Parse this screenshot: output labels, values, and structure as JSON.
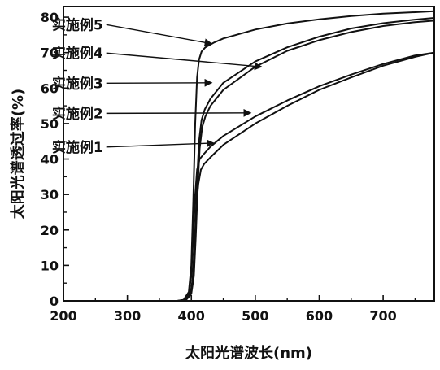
{
  "chart_data": {
    "type": "line",
    "xlabel": "太阳光谱波长(nm)",
    "ylabel": "太阳光谱透过率(%)",
    "xlim": [
      200,
      780
    ],
    "ylim": [
      0,
      83
    ],
    "x_ticks": [
      200,
      300,
      400,
      500,
      600,
      700
    ],
    "y_ticks": [
      0,
      10,
      20,
      30,
      40,
      50,
      60,
      70,
      80
    ],
    "grid": false,
    "series": [
      {
        "name": "实施例1",
        "points": [
          [
            200,
            0
          ],
          [
            380,
            0
          ],
          [
            390,
            0.3
          ],
          [
            398,
            1.5
          ],
          [
            402,
            6
          ],
          [
            405,
            16
          ],
          [
            408,
            27
          ],
          [
            411,
            33
          ],
          [
            415,
            37
          ],
          [
            420,
            38.6
          ],
          [
            430,
            40.5
          ],
          [
            450,
            44
          ],
          [
            500,
            50
          ],
          [
            550,
            55
          ],
          [
            600,
            59.5
          ],
          [
            650,
            63
          ],
          [
            700,
            66.3
          ],
          [
            750,
            68.8
          ],
          [
            780,
            70
          ]
        ]
      },
      {
        "name": "实施例2",
        "points": [
          [
            200,
            0
          ],
          [
            378,
            0
          ],
          [
            388,
            0.3
          ],
          [
            396,
            2
          ],
          [
            400,
            7
          ],
          [
            403,
            18
          ],
          [
            406,
            30
          ],
          [
            409,
            37
          ],
          [
            413,
            40
          ],
          [
            420,
            41.5
          ],
          [
            430,
            43.5
          ],
          [
            450,
            46.5
          ],
          [
            500,
            52
          ],
          [
            550,
            56.5
          ],
          [
            600,
            60.5
          ],
          [
            650,
            63.8
          ],
          [
            700,
            66.8
          ],
          [
            750,
            69.2
          ],
          [
            780,
            70
          ]
        ]
      },
      {
        "name": "实施例3",
        "points": [
          [
            200,
            0
          ],
          [
            382,
            0
          ],
          [
            392,
            0.3
          ],
          [
            400,
            2
          ],
          [
            404,
            7
          ],
          [
            407,
            18
          ],
          [
            410,
            32
          ],
          [
            413,
            43
          ],
          [
            417,
            49
          ],
          [
            422,
            52
          ],
          [
            430,
            55
          ],
          [
            450,
            59.5
          ],
          [
            500,
            66
          ],
          [
            550,
            70.5
          ],
          [
            600,
            73.5
          ],
          [
            650,
            75.8
          ],
          [
            700,
            77.5
          ],
          [
            750,
            78.6
          ],
          [
            780,
            79
          ]
        ]
      },
      {
        "name": "实施例4",
        "points": [
          [
            200,
            0
          ],
          [
            381,
            0
          ],
          [
            391,
            0.3
          ],
          [
            399,
            2
          ],
          [
            403,
            7
          ],
          [
            406,
            19
          ],
          [
            409,
            34
          ],
          [
            412,
            45
          ],
          [
            416,
            51
          ],
          [
            421,
            54
          ],
          [
            430,
            57
          ],
          [
            450,
            61.5
          ],
          [
            500,
            67.5
          ],
          [
            550,
            71.5
          ],
          [
            600,
            74.5
          ],
          [
            650,
            76.8
          ],
          [
            700,
            78.3
          ],
          [
            750,
            79.3
          ],
          [
            780,
            79.8
          ]
        ]
      },
      {
        "name": "实施例5",
        "points": [
          [
            200,
            0
          ],
          [
            378,
            0
          ],
          [
            388,
            0.3
          ],
          [
            396,
            2.5
          ],
          [
            400,
            10
          ],
          [
            403,
            28
          ],
          [
            406,
            50
          ],
          [
            409,
            63
          ],
          [
            412,
            68
          ],
          [
            416,
            70.3
          ],
          [
            422,
            71.5
          ],
          [
            435,
            72.8
          ],
          [
            450,
            74
          ],
          [
            500,
            76.5
          ],
          [
            550,
            78.2
          ],
          [
            600,
            79.4
          ],
          [
            650,
            80.3
          ],
          [
            700,
            81
          ],
          [
            750,
            81.4
          ],
          [
            780,
            81.7
          ]
        ]
      }
    ],
    "annotations": [
      {
        "text": "实施例5",
        "label_x": 182,
        "label_y": 76.5,
        "arrow_to": [
          432,
          72.5
        ]
      },
      {
        "text": "实施例4",
        "label_x": 182,
        "label_y": 68.5,
        "arrow_to": [
          510,
          66
        ]
      },
      {
        "text": "实施例3",
        "label_x": 182,
        "label_y": 60,
        "arrow_to": [
          432,
          61.5
        ]
      },
      {
        "text": "实施例2",
        "label_x": 182,
        "label_y": 51.5,
        "arrow_to": [
          493,
          53
        ]
      },
      {
        "text": "实施例1",
        "label_x": 182,
        "label_y": 42,
        "arrow_to": [
          435,
          44.5
        ]
      }
    ]
  }
}
